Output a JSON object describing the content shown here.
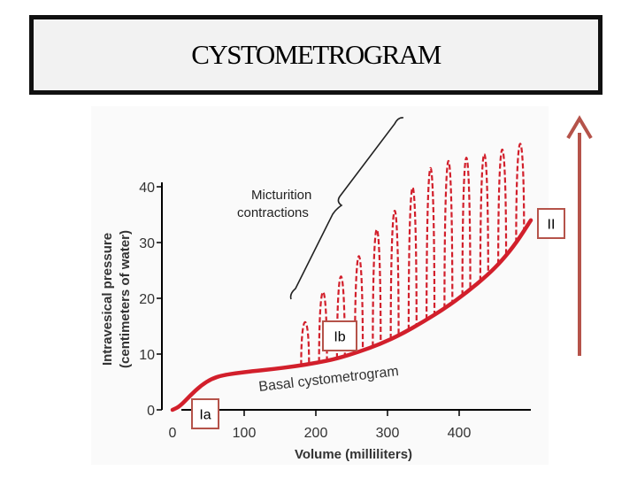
{
  "slide": {
    "title": "CYSTOMETROGRAM"
  },
  "chart_data": {
    "type": "line",
    "xlabel": "Volume (milliliters)",
    "ylabel_line1": "Intravesical pressure",
    "ylabel_line2": "(centimeters of water)",
    "xlim": [
      0,
      500
    ],
    "ylim": [
      0,
      40
    ],
    "x_ticks": [
      0,
      100,
      200,
      300,
      400
    ],
    "y_ticks": [
      0,
      10,
      20,
      30,
      40
    ],
    "grid": false,
    "series": [
      {
        "name": "",
        "style": "solid",
        "color": "#d21f2b",
        "points": [
          [
            0,
            0
          ],
          [
            10,
            0.6
          ],
          [
            25,
            2.6
          ],
          [
            40,
            4.4
          ],
          [
            55,
            5.6
          ],
          [
            70,
            6.2
          ],
          [
            90,
            6.6
          ],
          [
            110,
            6.9
          ],
          [
            140,
            7.3
          ],
          [
            170,
            7.8
          ],
          [
            200,
            8.4
          ],
          [
            230,
            9.2
          ],
          [
            260,
            10.4
          ],
          [
            290,
            11.8
          ],
          [
            320,
            13.6
          ],
          [
            350,
            15.8
          ],
          [
            380,
            18.2
          ],
          [
            410,
            21.0
          ],
          [
            440,
            24.2
          ],
          [
            460,
            26.8
          ],
          [
            480,
            30.0
          ],
          [
            500,
            34.0
          ]
        ]
      }
    ],
    "micturition_contractions": {
      "style": "dashed",
      "color": "#d21f2b",
      "peaks": [
        {
          "x": 185,
          "y": 17.0
        },
        {
          "x": 210,
          "y": 24.0
        },
        {
          "x": 235,
          "y": 27.5
        },
        {
          "x": 260,
          "y": 32.0
        },
        {
          "x": 285,
          "y": 38.0
        },
        {
          "x": 310,
          "y": 42.0
        },
        {
          "x": 335,
          "y": 47.0
        },
        {
          "x": 360,
          "y": 51.0
        },
        {
          "x": 385,
          "y": 52.0
        },
        {
          "x": 410,
          "y": 52.0
        },
        {
          "x": 435,
          "y": 52.0
        },
        {
          "x": 460,
          "y": 52.0
        },
        {
          "x": 485,
          "y": 52.0
        }
      ]
    },
    "annotations": [
      {
        "text": "Micturition",
        "line2": "contractions"
      },
      {
        "text": "Basal cystometrogram"
      }
    ],
    "phase_labels": [
      "Ia",
      "Ib",
      "II"
    ],
    "colors": {
      "curve": "#d21f2b",
      "phase_box_border": "#b5534a",
      "arrow": "#b5534a",
      "axis": "#000000"
    }
  }
}
